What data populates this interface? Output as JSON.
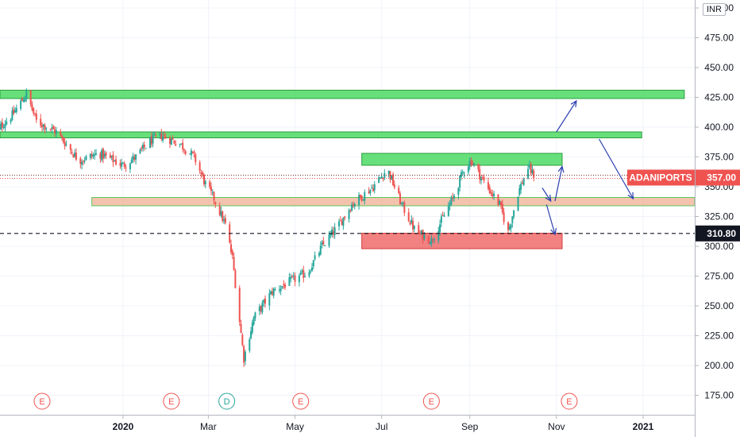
{
  "chart_data": {
    "type": "candlestick",
    "symbol": "ADANIPORTS",
    "currency": "INR",
    "y_range": [
      165,
      500
    ],
    "y_ticks": [
      "500.00",
      "475.00",
      "450.00",
      "425.00",
      "400.00",
      "375.00",
      "350.00",
      "325.00",
      "300.00",
      "275.00",
      "250.00",
      "225.00",
      "200.00",
      "175.00"
    ],
    "x_ticks": [
      "2020",
      "Mar",
      "May",
      "Jul",
      "Sep",
      "Nov",
      "2021"
    ],
    "last_price": {
      "label": "ADANIPORTS",
      "value": "357.00",
      "color": "#ef5350"
    },
    "reference_line": {
      "value": "310.80"
    },
    "price_path": [
      {
        "date": "2019-10-02",
        "close": 395
      },
      {
        "date": "2019-10-15",
        "close": 410
      },
      {
        "date": "2019-10-25",
        "close": 428
      },
      {
        "date": "2019-11-01",
        "close": 405
      },
      {
        "date": "2019-11-15",
        "close": 396
      },
      {
        "date": "2019-12-01",
        "close": 372
      },
      {
        "date": "2019-12-15",
        "close": 378
      },
      {
        "date": "2020-01-01",
        "close": 368
      },
      {
        "date": "2020-01-10",
        "close": 375
      },
      {
        "date": "2020-01-20",
        "close": 388
      },
      {
        "date": "2020-01-28",
        "close": 393
      },
      {
        "date": "2020-02-10",
        "close": 386
      },
      {
        "date": "2020-02-20",
        "close": 375
      },
      {
        "date": "2020-02-28",
        "close": 352
      },
      {
        "date": "2020-03-05",
        "close": 340
      },
      {
        "date": "2020-03-13",
        "close": 318
      },
      {
        "date": "2020-03-18",
        "close": 290
      },
      {
        "date": "2020-03-26",
        "close": 206
      },
      {
        "date": "2020-04-02",
        "close": 240
      },
      {
        "date": "2020-04-15",
        "close": 262
      },
      {
        "date": "2020-04-30",
        "close": 272
      },
      {
        "date": "2020-05-10",
        "close": 278
      },
      {
        "date": "2020-05-20",
        "close": 300
      },
      {
        "date": "2020-06-01",
        "close": 318
      },
      {
        "date": "2020-06-10",
        "close": 335
      },
      {
        "date": "2020-06-25",
        "close": 350
      },
      {
        "date": "2020-07-05",
        "close": 365
      },
      {
        "date": "2020-07-15",
        "close": 335
      },
      {
        "date": "2020-07-25",
        "close": 312
      },
      {
        "date": "2020-08-05",
        "close": 305
      },
      {
        "date": "2020-08-20",
        "close": 340
      },
      {
        "date": "2020-08-28",
        "close": 365
      },
      {
        "date": "2020-09-02",
        "close": 372
      },
      {
        "date": "2020-09-12",
        "close": 352
      },
      {
        "date": "2020-09-22",
        "close": 335
      },
      {
        "date": "2020-09-28",
        "close": 312
      },
      {
        "date": "2020-10-05",
        "close": 345
      },
      {
        "date": "2020-10-12",
        "close": 366
      },
      {
        "date": "2020-10-18",
        "close": 357
      }
    ],
    "zones": [
      {
        "type": "resistance",
        "from": "2019-10-01",
        "to": "2021-01-30",
        "low": 424,
        "high": 431,
        "color": "#4cd964"
      },
      {
        "type": "resistance",
        "from": "2019-10-01",
        "to": "2020-12-31",
        "low": 391,
        "high": 396,
        "color": "#4cd964"
      },
      {
        "type": "resistance",
        "from": "2020-06-17",
        "to": "2020-11-05",
        "low": 368,
        "high": 378,
        "color": "#4cd964"
      },
      {
        "type": "support",
        "from": "2019-12-10",
        "to": "2021-03-15",
        "low": 334,
        "high": 341,
        "color": "#f1b9a0"
      },
      {
        "type": "support",
        "from": "2020-06-17",
        "to": "2020-11-05",
        "low": 298,
        "high": 311,
        "color": "#f06b6b"
      }
    ],
    "projections": [
      {
        "points": [
          [
            "2020-10-22",
            349
          ],
          [
            "2020-10-28",
            338
          ]
        ]
      },
      {
        "points": [
          [
            "2020-10-31",
            338
          ],
          [
            "2020-11-05",
            367
          ]
        ]
      },
      {
        "points": [
          [
            "2020-10-25",
            335
          ],
          [
            "2020-10-31",
            310
          ]
        ]
      },
      {
        "points": [
          [
            "2020-11-01",
            396
          ],
          [
            "2020-11-15",
            422
          ]
        ]
      },
      {
        "points": [
          [
            "2020-12-01",
            390
          ],
          [
            "2020-12-25",
            340
          ]
        ]
      }
    ],
    "events": [
      {
        "label": "E",
        "date": "2019-11-05",
        "color": "#ef5350"
      },
      {
        "label": "E",
        "date": "2020-02-04",
        "color": "#ef5350"
      },
      {
        "label": "D",
        "date": "2020-03-14",
        "color": "#26a69a"
      },
      {
        "label": "E",
        "date": "2020-05-05",
        "color": "#ef5350"
      },
      {
        "label": "E",
        "date": "2020-08-05",
        "color": "#ef5350"
      },
      {
        "label": "E",
        "date": "2020-11-10",
        "color": "#ef5350"
      }
    ],
    "colors": {
      "up": "#26a69a",
      "down": "#ef5350",
      "reference": "#131722",
      "projection": "#2b3fae"
    }
  }
}
